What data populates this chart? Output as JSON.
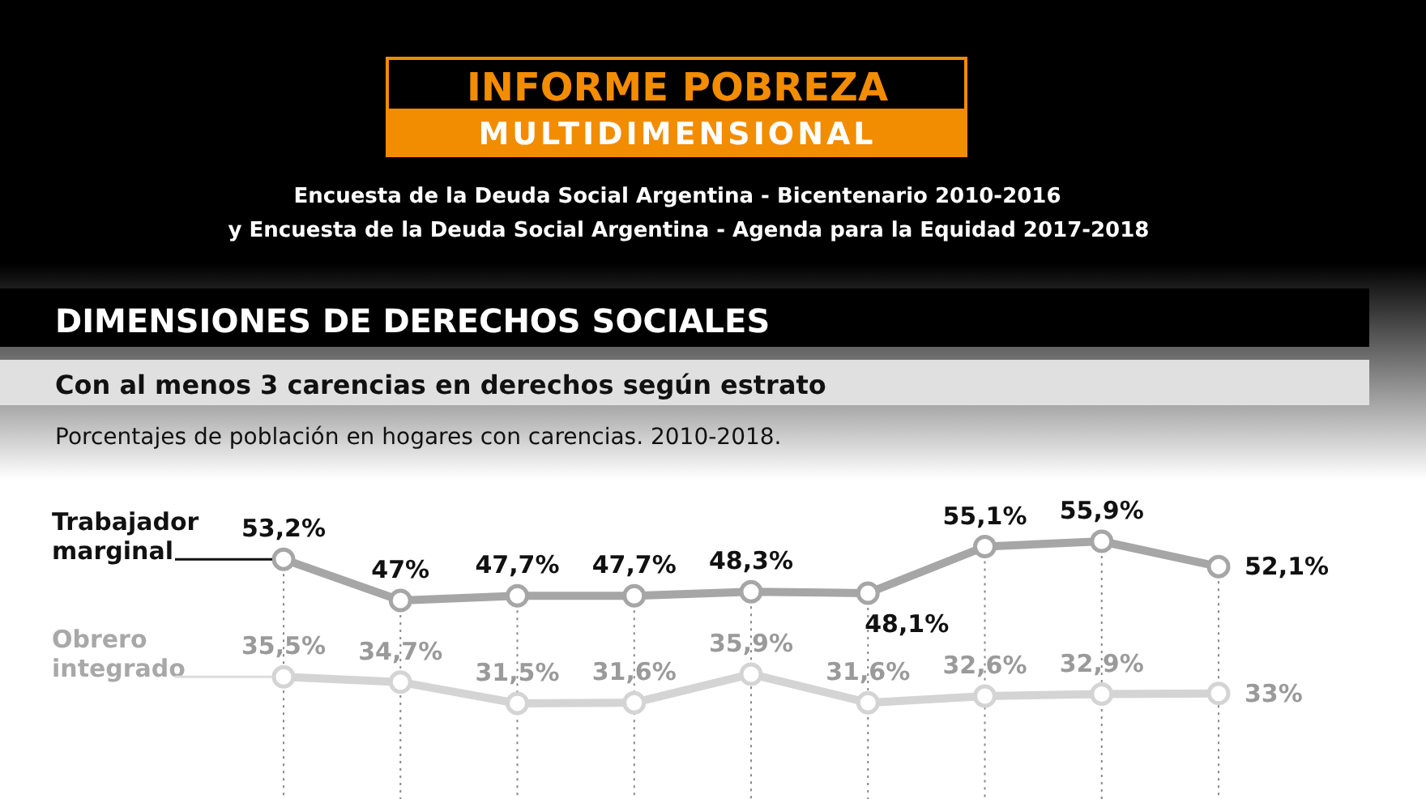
{
  "chart_data": {
    "type": "line",
    "title": "Con al menos 3 carencias en derechos según estrato",
    "subtitle": "Porcentajes de población en hogares con carencias. 2010-2018.",
    "annotations": [
      "INFORME POBREZA",
      "MULTIDIMENSIONAL",
      "Encuesta de la Deuda Social Argentina - Bicentenario 2010-2016",
      "y Encuesta de la Deuda Social Argentina - Agenda para la Equidad 2017-2018",
      "DIMENSIONES DE DERECHOS SOCIALES"
    ],
    "categories": [
      null,
      null,
      null,
      null,
      null,
      null,
      null,
      null,
      null
    ],
    "marker": "circle",
    "grid": "x",
    "legend": false,
    "series": [
      {
        "name": "Trabajador marginal",
        "color": "#a6a6a6",
        "values": [
          53.2,
          47,
          47.7,
          47.7,
          48.3,
          48.1,
          55.1,
          55.9,
          52.1
        ],
        "value_labels": [
          "53,2%",
          "47%",
          "47,7%",
          "47,7%",
          "48,3%",
          "48,1%",
          "55,1%",
          "55,9%",
          "52,1%"
        ]
      },
      {
        "name": "Obrero integrado",
        "color": "#d4d4d4",
        "values": [
          35.5,
          34.7,
          31.5,
          31.6,
          35.9,
          31.6,
          32.6,
          32.9,
          33
        ],
        "value_labels": [
          "35,5%",
          "34,7%",
          "31,5%",
          "31,6%",
          "35,9%",
          "31,6%",
          "32,6%",
          "32,9%",
          "33%"
        ]
      }
    ]
  }
}
